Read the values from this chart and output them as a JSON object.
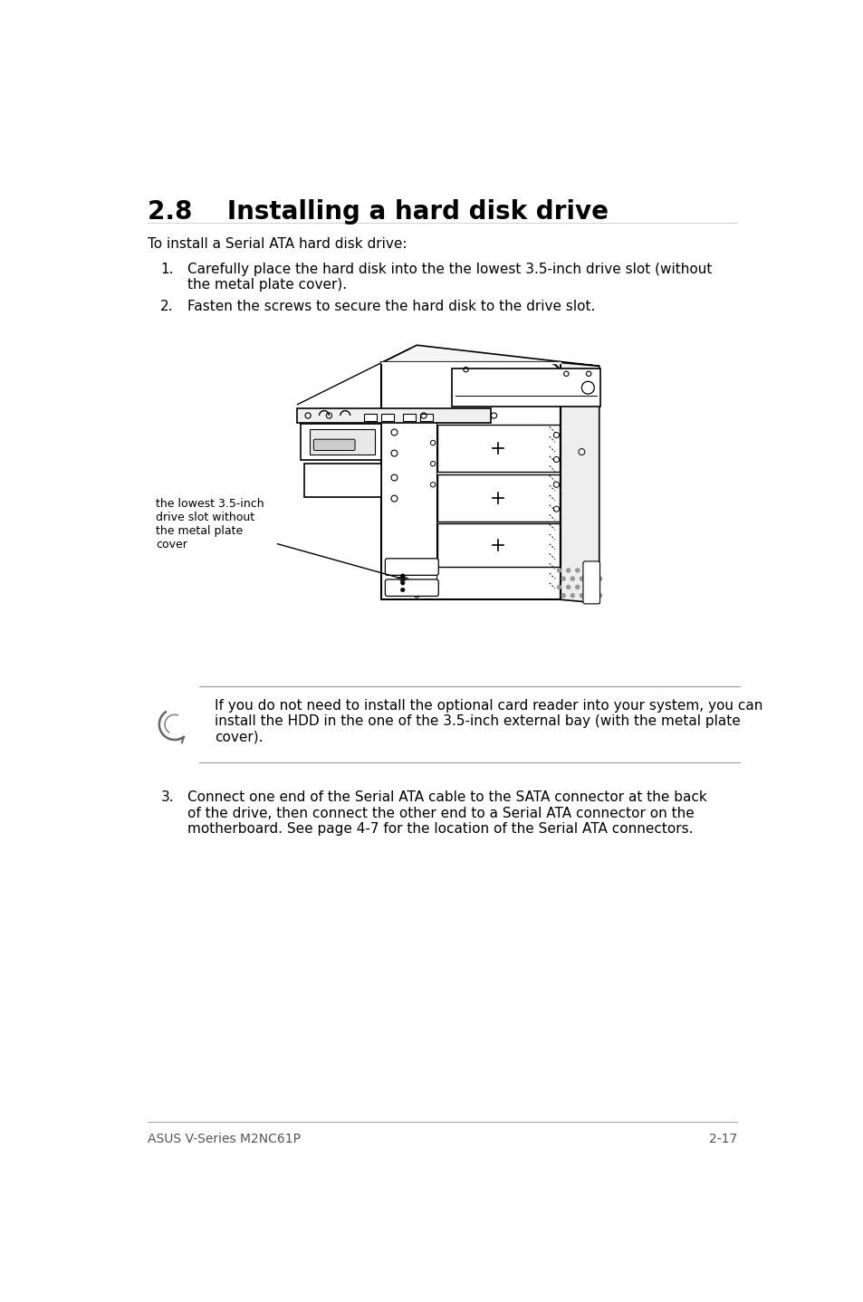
{
  "title": "2.8    Installing a hard disk drive",
  "intro": "To install a Serial ATA hard disk drive:",
  "step1_num": "1.",
  "step1_text": "Carefully place the hard disk into the the lowest 3.5-inch drive slot (without\nthe metal plate cover).",
  "step2_num": "2.",
  "step2_text": "Fasten the screws to secure the hard disk to the drive slot.",
  "step3_num": "3.",
  "step3_text": "Connect one end of the Serial ATA cable to the SATA connector at the back\nof the drive, then connect the other end to a Serial ATA connector on the\nmotherboard. See page 4-7 for the location of the Serial ATA connectors.",
  "note_text": "If you do not need to install the optional card reader into your system, you can\ninstall the HDD in the one of the 3.5-inch external bay (with the metal plate\ncover).",
  "label_text": "the lowest 3.5-inch\ndrive slot without\nthe metal plate\ncover",
  "footer_left": "ASUS V-Series M2NC61P",
  "footer_right": "2-17",
  "bg_color": "#ffffff",
  "text_color": "#000000",
  "title_fontsize": 20,
  "body_fontsize": 11,
  "footer_fontsize": 10
}
